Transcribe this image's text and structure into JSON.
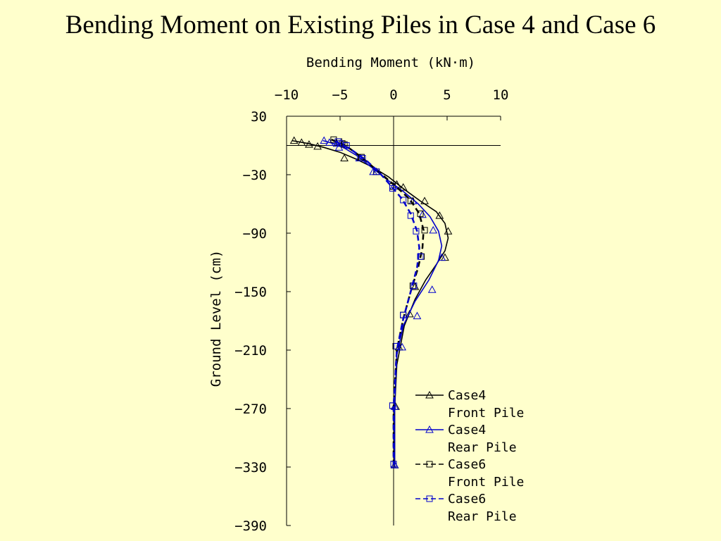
{
  "slide": {
    "title": "Bending Moment on Existing Piles in Case 4 and Case 6"
  },
  "chart_data": {
    "type": "line",
    "title": "",
    "xlabel": "Bending Moment (kN·m)",
    "ylabel": "Ground Level (cm)",
    "xlim": [
      -10,
      10
    ],
    "ylim": [
      -390,
      30
    ],
    "xticks": [
      -10,
      -5,
      0,
      5,
      10
    ],
    "yticks": [
      30,
      -30,
      -90,
      -150,
      -210,
      -270,
      -330,
      -390
    ],
    "x_axis_position": "top",
    "reference_line_y": 0,
    "grid": false,
    "legend_position": "bottom-right",
    "series": [
      {
        "name": "Case4 Front Pile",
        "color": "#000000",
        "dash": "solid",
        "marker": "triangle",
        "points": [
          [
            -9.3,
            5
          ],
          [
            -8.6,
            3
          ],
          [
            -7.9,
            1
          ],
          [
            -7.1,
            -1
          ],
          [
            -4.6,
            -13
          ],
          [
            -3.1,
            -13
          ],
          [
            -1.6,
            -27
          ],
          [
            0.3,
            -40
          ],
          [
            0.9,
            -43
          ],
          [
            2.9,
            -57
          ],
          [
            4.3,
            -72
          ],
          [
            5.1,
            -88
          ],
          [
            4.8,
            -115
          ],
          [
            2.0,
            -145
          ],
          [
            1.5,
            -173
          ],
          [
            0.5,
            -207
          ],
          [
            0.2,
            -268
          ],
          [
            0.1,
            -328
          ]
        ],
        "curve": [
          [
            -9.5,
            5
          ],
          [
            -8,
            2
          ],
          [
            -6.5,
            -2
          ],
          [
            -5,
            -7
          ],
          [
            -3.5,
            -14
          ],
          [
            -2,
            -22
          ],
          [
            -0.5,
            -32
          ],
          [
            1,
            -45
          ],
          [
            2.5,
            -57
          ],
          [
            4,
            -68
          ],
          [
            4.8,
            -80
          ],
          [
            5.1,
            -95
          ],
          [
            4.8,
            -108
          ],
          [
            4,
            -122
          ],
          [
            3,
            -138
          ],
          [
            2,
            -158
          ],
          [
            1,
            -185
          ],
          [
            0.3,
            -225
          ],
          [
            0.1,
            -270
          ],
          [
            0.1,
            -330
          ]
        ]
      },
      {
        "name": "Case4 Rear Pile",
        "color": "#0000cc",
        "dash": "solid",
        "marker": "triangle",
        "points": [
          [
            -6.5,
            5
          ],
          [
            -6.0,
            3
          ],
          [
            -5.3,
            2
          ],
          [
            -5.1,
            -2
          ],
          [
            -3.2,
            -13
          ],
          [
            -1.9,
            -27
          ],
          [
            0,
            -42
          ],
          [
            1.8,
            -57
          ],
          [
            2.7,
            -71
          ],
          [
            3.7,
            -87
          ],
          [
            4.5,
            -115
          ],
          [
            3.6,
            -148
          ],
          [
            2.2,
            -175
          ],
          [
            0.8,
            -207
          ],
          [
            0.1,
            -268
          ],
          [
            0.1,
            -328
          ]
        ],
        "curve": [
          [
            -6.6,
            5
          ],
          [
            -5,
            0
          ],
          [
            -3.5,
            -10
          ],
          [
            -2,
            -23
          ],
          [
            -0.5,
            -36
          ],
          [
            1,
            -48
          ],
          [
            2.3,
            -60
          ],
          [
            3.4,
            -73
          ],
          [
            4.2,
            -88
          ],
          [
            4.5,
            -103
          ],
          [
            4.2,
            -118
          ],
          [
            3.3,
            -138
          ],
          [
            2,
            -160
          ],
          [
            0.9,
            -185
          ],
          [
            0.3,
            -215
          ],
          [
            0.1,
            -270
          ],
          [
            0.1,
            -330
          ]
        ]
      },
      {
        "name": "Case6 Front Pile",
        "color": "#000000",
        "dash": "dashed",
        "marker": "square",
        "points": [
          [
            -5.6,
            6
          ],
          [
            -5.1,
            4
          ],
          [
            -4.8,
            2
          ],
          [
            -4.6,
            1
          ],
          [
            -3.0,
            -12
          ],
          [
            -1.6,
            -27
          ],
          [
            -0.1,
            -42
          ],
          [
            1.6,
            -57
          ],
          [
            2.5,
            -70
          ],
          [
            2.9,
            -87
          ],
          [
            2.6,
            -114
          ],
          [
            1.8,
            -144
          ],
          [
            0.9,
            -174
          ],
          [
            0.2,
            -206
          ],
          [
            -0.1,
            -267
          ],
          [
            0,
            -327
          ]
        ],
        "curve": [
          [
            -5.8,
            6
          ],
          [
            -4.5,
            0
          ],
          [
            -3,
            -12
          ],
          [
            -1.5,
            -26
          ],
          [
            0,
            -40
          ],
          [
            1.5,
            -55
          ],
          [
            2.4,
            -70
          ],
          [
            2.8,
            -87
          ],
          [
            2.7,
            -105
          ],
          [
            2.3,
            -125
          ],
          [
            1.6,
            -150
          ],
          [
            0.9,
            -178
          ],
          [
            0.3,
            -210
          ],
          [
            0,
            -268
          ],
          [
            0,
            -328
          ]
        ]
      },
      {
        "name": "Case6 Rear Pile",
        "color": "#0000cc",
        "dash": "dashed",
        "marker": "square",
        "points": [
          [
            -5.2,
            4
          ],
          [
            -5.0,
            2
          ],
          [
            -4.4,
            0
          ],
          [
            -2.9,
            -13
          ],
          [
            -1.6,
            -27
          ],
          [
            -0.1,
            -44
          ],
          [
            0.9,
            -56
          ],
          [
            1.6,
            -72
          ],
          [
            2.1,
            -88
          ],
          [
            2.5,
            -114
          ],
          [
            1.9,
            -144
          ],
          [
            0.9,
            -174
          ],
          [
            0.3,
            -206
          ],
          [
            -0.1,
            -267
          ],
          [
            0,
            -327
          ]
        ],
        "curve": [
          [
            -5.4,
            4
          ],
          [
            -4,
            -4
          ],
          [
            -2.7,
            -14
          ],
          [
            -1.4,
            -27
          ],
          [
            -0.2,
            -42
          ],
          [
            0.8,
            -55
          ],
          [
            1.6,
            -70
          ],
          [
            2.2,
            -88
          ],
          [
            2.4,
            -105
          ],
          [
            2.2,
            -125
          ],
          [
            1.6,
            -150
          ],
          [
            0.9,
            -178
          ],
          [
            0.3,
            -210
          ],
          [
            0,
            -268
          ],
          [
            0,
            -328
          ]
        ]
      }
    ]
  }
}
